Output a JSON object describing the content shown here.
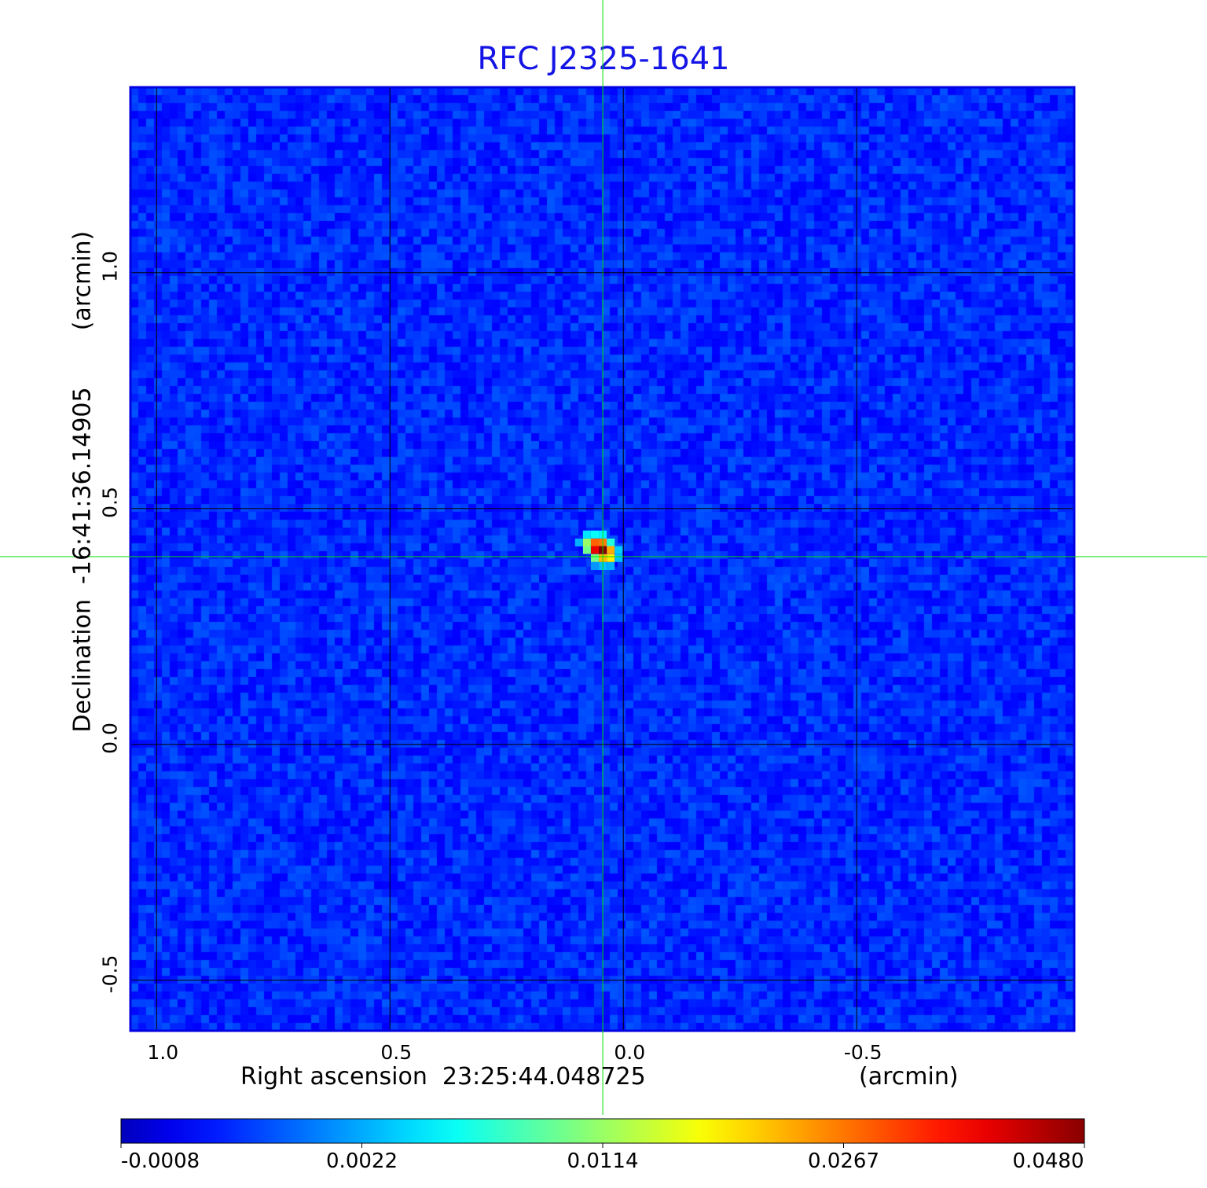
{
  "chart_data": {
    "type": "heatmap",
    "title": "RFC J2325-1641",
    "xlabel": "Right ascension  23:25:44.048725",
    "xunit": "(arcmin)",
    "ylabel": "Declination  -16:41:36.14905",
    "yunit": "(arcmin)",
    "x_ticks": [
      "1.0",
      "0.5",
      "0.0",
      "-0.5"
    ],
    "x_tick_values": [
      1.0,
      0.5,
      0.0,
      -0.5
    ],
    "y_ticks": [
      "1.0",
      "0.5",
      "0.0",
      "-0.5"
    ],
    "y_tick_values": [
      1.0,
      0.5,
      0.0,
      -0.5
    ],
    "xlim": [
      1.056,
      -0.966
    ],
    "ylim": [
      -0.607,
      1.393
    ],
    "grid": true,
    "crosshair": {
      "x": 0.044,
      "y": 0.398,
      "color": "#00e000"
    },
    "colormap": "jet",
    "colorbar": {
      "ticks": [
        "-0.0008",
        "0.0022",
        "0.0114",
        "0.0267",
        "0.0480"
      ],
      "tick_values": [
        -0.0008,
        0.0022,
        0.0114,
        0.0267,
        0.048
      ],
      "placement": "bottom"
    },
    "background_level": 0.0005,
    "source_pixels": [
      {
        "x": 0.078,
        "y": 0.445,
        "v": 0.006
      },
      {
        "x": 0.061,
        "y": 0.445,
        "v": 0.007
      },
      {
        "x": 0.044,
        "y": 0.445,
        "v": 0.0065
      },
      {
        "x": 0.095,
        "y": 0.428,
        "v": 0.004
      },
      {
        "x": 0.078,
        "y": 0.428,
        "v": 0.013
      },
      {
        "x": 0.061,
        "y": 0.428,
        "v": 0.029
      },
      {
        "x": 0.044,
        "y": 0.428,
        "v": 0.027
      },
      {
        "x": 0.027,
        "y": 0.428,
        "v": 0.008
      },
      {
        "x": 0.078,
        "y": 0.412,
        "v": 0.011
      },
      {
        "x": 0.061,
        "y": 0.412,
        "v": 0.039
      },
      {
        "x": 0.044,
        "y": 0.412,
        "v": 0.048
      },
      {
        "x": 0.027,
        "y": 0.412,
        "v": 0.024
      },
      {
        "x": 0.01,
        "y": 0.412,
        "v": 0.005
      },
      {
        "x": 0.061,
        "y": 0.395,
        "v": 0.011
      },
      {
        "x": 0.044,
        "y": 0.395,
        "v": 0.023
      },
      {
        "x": 0.027,
        "y": 0.395,
        "v": 0.02
      },
      {
        "x": 0.01,
        "y": 0.395,
        "v": 0.0045
      },
      {
        "x": 0.061,
        "y": 0.378,
        "v": 0.003
      },
      {
        "x": 0.044,
        "y": 0.378,
        "v": 0.0045
      },
      {
        "x": 0.027,
        "y": 0.378,
        "v": 0.004
      }
    ]
  }
}
